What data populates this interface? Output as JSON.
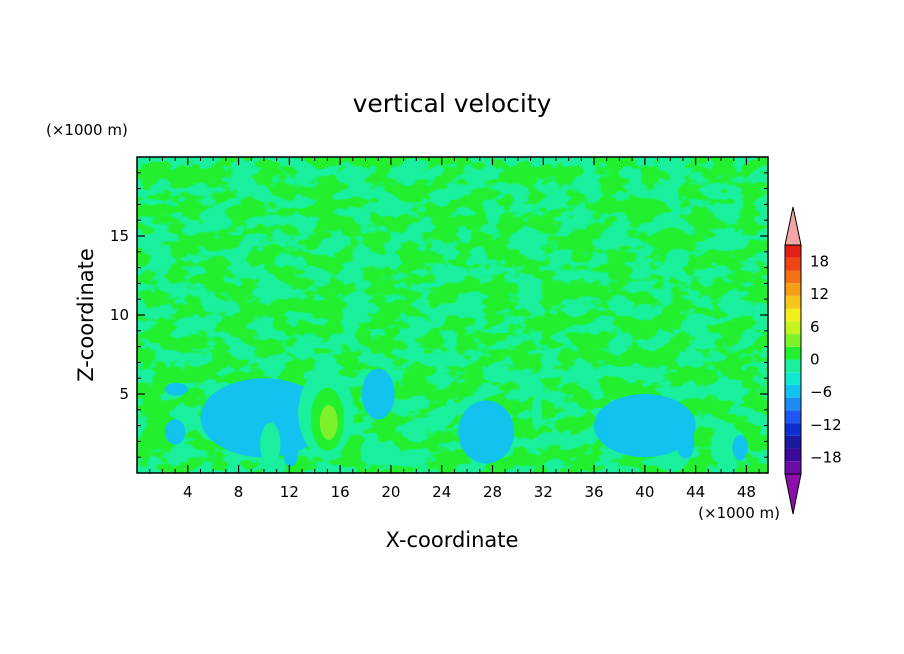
{
  "chart_data": {
    "type": "heatmap",
    "title": "vertical velocity",
    "xlabel": "X-coordinate",
    "ylabel": "Z-coordinate",
    "x_unit": "(×1000 m)",
    "y_unit": "(×1000 m)",
    "xlim": [
      0,
      49.7
    ],
    "ylim": [
      0,
      20
    ],
    "xticks": [
      "4",
      "8",
      "12",
      "16",
      "20",
      "24",
      "28",
      "32",
      "36",
      "40",
      "44",
      "48"
    ],
    "yticks": [
      "5",
      "10",
      "15"
    ],
    "colorbar": {
      "labels": [
        "18",
        "12",
        "6",
        "0",
        "−6",
        "−12",
        "−18"
      ],
      "label_values": [
        18,
        12,
        6,
        0,
        -6,
        -12,
        -18
      ],
      "range": [
        -21,
        21
      ],
      "step": 3,
      "colors": [
        "#6a0da8",
        "#3a0a9a",
        "#1a1a9e",
        "#0e2fd0",
        "#1e58f0",
        "#1d8cf2",
        "#12c3f0",
        "#12e8d0",
        "#19ef9c",
        "#21f02f",
        "#7df22b",
        "#c4f521",
        "#f3ef1d",
        "#f7c51b",
        "#f79d18",
        "#f37215",
        "#ee4416",
        "#e32015"
      ],
      "upper_extend": "#f4a6a6",
      "lower_extend": "#8b0fa8"
    },
    "background_value": 1.5,
    "features": [
      {
        "x": 14.9,
        "z": 3.8,
        "rx": 2.2,
        "rz": 2.8,
        "v": 3
      },
      {
        "x": 15.0,
        "z": 3.4,
        "rx": 1.3,
        "rz": 2.0,
        "v": 6
      },
      {
        "x": 15.1,
        "z": 3.2,
        "rx": 0.7,
        "rz": 1.1,
        "v": 9
      },
      {
        "x": 10.5,
        "z": 1.8,
        "rx": 0.8,
        "rz": 1.4,
        "v": 4
      },
      {
        "x": 18.2,
        "z": 1.4,
        "rx": 0.6,
        "rz": 0.7,
        "v": 4
      },
      {
        "x": 24.7,
        "z": 4.1,
        "rx": 0.4,
        "rz": 0.6,
        "v": 4
      },
      {
        "x": 31.5,
        "z": 3.9,
        "rx": 0.4,
        "rz": 1.2,
        "v": 4
      },
      {
        "x": 45.7,
        "z": 1.5,
        "rx": 0.5,
        "rz": 0.8,
        "v": 4
      },
      {
        "x": 27.5,
        "z": 2.6,
        "rx": 2.2,
        "rz": 2.0,
        "v": -1
      },
      {
        "x": 27.8,
        "z": 2.3,
        "rx": 1.4,
        "rz": 1.2,
        "v": -3
      },
      {
        "x": 19.0,
        "z": 5.0,
        "rx": 1.3,
        "rz": 1.6,
        "v": -1
      },
      {
        "x": 19.1,
        "z": 4.7,
        "rx": 0.7,
        "rz": 0.9,
        "v": -3
      },
      {
        "x": 3.1,
        "z": 5.3,
        "rx": 0.9,
        "rz": 0.4,
        "v": -3
      },
      {
        "x": 3.0,
        "z": 2.6,
        "rx": 0.8,
        "rz": 0.8,
        "v": -3
      },
      {
        "x": 12.1,
        "z": 1.3,
        "rx": 0.6,
        "rz": 0.9,
        "v": -3
      },
      {
        "x": 37.5,
        "z": 3.8,
        "rx": 0.5,
        "rz": 0.7,
        "v": -3
      },
      {
        "x": 43.2,
        "z": 1.9,
        "rx": 0.7,
        "rz": 1.0,
        "v": -3
      },
      {
        "x": 47.5,
        "z": 1.6,
        "rx": 0.6,
        "rz": 0.8,
        "v": -3
      },
      {
        "x": 10.0,
        "z": 3.5,
        "rx": 5.0,
        "rz": 2.5,
        "v": -1
      },
      {
        "x": 40.0,
        "z": 3.0,
        "rx": 4.0,
        "rz": 2.0,
        "v": -1
      }
    ]
  }
}
